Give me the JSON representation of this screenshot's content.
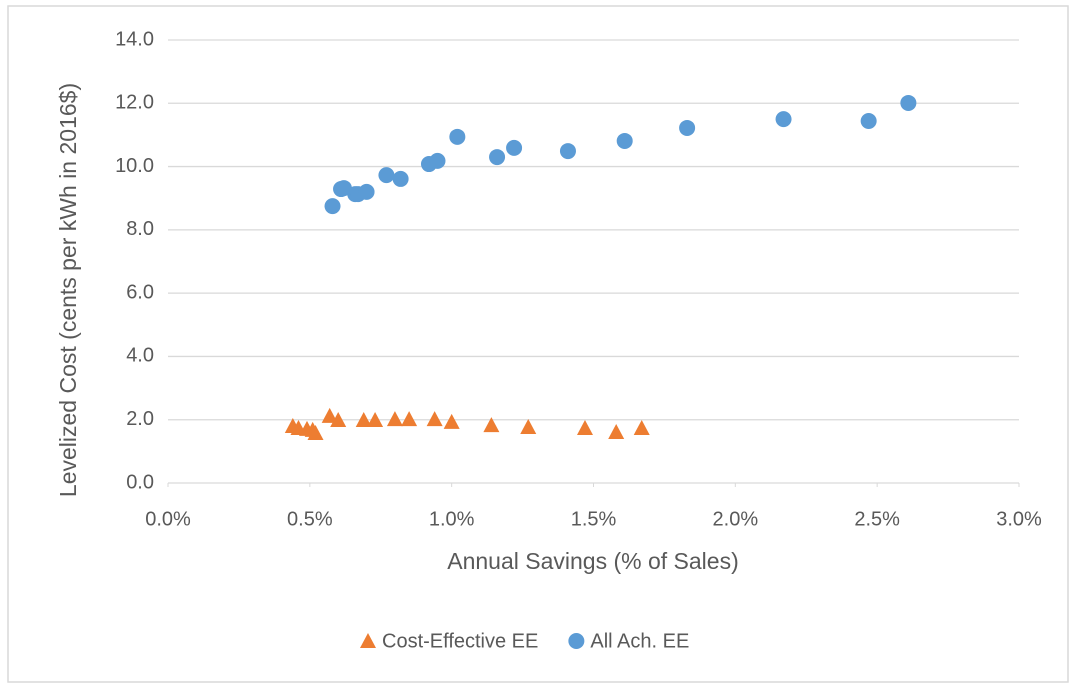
{
  "chart_data": {
    "type": "scatter",
    "xlabel": "Annual Savings  (% of Sales)",
    "ylabel": "Levelized Cost (cents per kWh in 2016$)",
    "xlim": [
      0,
      3
    ],
    "ylim": [
      0,
      14
    ],
    "xticks": [
      {
        "value": 0,
        "label": "0.0%"
      },
      {
        "value": 0.5,
        "label": "0.5%"
      },
      {
        "value": 1,
        "label": "1.0%"
      },
      {
        "value": 1.5,
        "label": "1.5%"
      },
      {
        "value": 2,
        "label": "2.0%"
      },
      {
        "value": 2.5,
        "label": "2.5%"
      },
      {
        "value": 3,
        "label": "3.0%"
      }
    ],
    "yticks": [
      {
        "value": 0,
        "label": "0.0"
      },
      {
        "value": 2,
        "label": "2.0"
      },
      {
        "value": 4,
        "label": "4.0"
      },
      {
        "value": 6,
        "label": "6.0"
      },
      {
        "value": 8,
        "label": "8.0"
      },
      {
        "value": 10,
        "label": "10.0"
      },
      {
        "value": 12,
        "label": "12.0"
      },
      {
        "value": 14,
        "label": "14.0"
      }
    ],
    "grid": true,
    "legend": "bottom",
    "series": [
      {
        "name": "Cost-Effective EE",
        "color": "#ed7d31",
        "marker": "triangle",
        "x": [
          0.44,
          0.46,
          0.49,
          0.51,
          0.52,
          0.57,
          0.6,
          0.69,
          0.73,
          0.8,
          0.85,
          0.94,
          1.0,
          1.14,
          1.27,
          1.47,
          1.58,
          1.67
        ],
        "values": [
          1.8,
          1.74,
          1.71,
          1.68,
          1.58,
          2.12,
          1.99,
          1.99,
          1.99,
          2.02,
          2.02,
          2.02,
          1.93,
          1.83,
          1.77,
          1.74,
          1.61,
          1.74
        ]
      },
      {
        "name": "All Ach. EE",
        "color": "#5b9bd5",
        "marker": "circle",
        "x": [
          0.58,
          0.61,
          0.62,
          0.66,
          0.67,
          0.7,
          0.77,
          0.82,
          0.92,
          0.95,
          1.02,
          1.16,
          1.22,
          1.41,
          1.61,
          1.83,
          2.17,
          2.47,
          2.61
        ],
        "values": [
          8.75,
          9.29,
          9.32,
          9.13,
          9.13,
          9.2,
          9.73,
          9.61,
          10.08,
          10.18,
          10.94,
          10.3,
          10.59,
          10.49,
          10.81,
          11.22,
          11.5,
          11.44,
          12.01
        ]
      }
    ]
  }
}
